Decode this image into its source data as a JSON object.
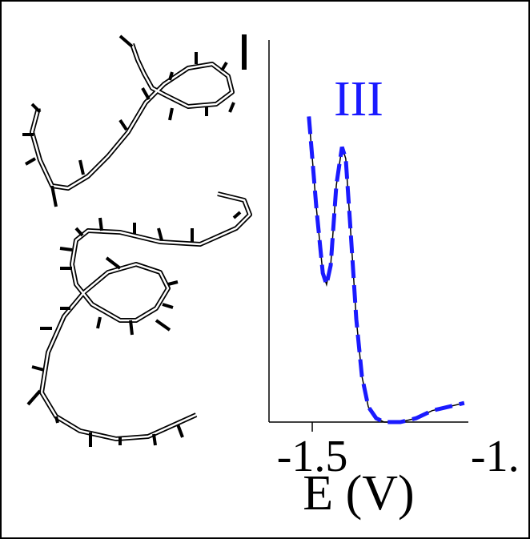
{
  "chart_data": {
    "type": "line",
    "x_label": "E (V)",
    "annotations": [
      "I",
      "III"
    ],
    "x": [
      -1.509,
      -1.489,
      -1.472,
      -1.462,
      -1.451,
      -1.436,
      -1.421,
      -1.411,
      -1.398,
      -1.383,
      -1.368,
      -1.351,
      -1.33,
      -1.309,
      -1.266,
      -1.224,
      -1.181,
      -1.138,
      -1.096
    ],
    "series": [
      {
        "color": "#000000",
        "dash": false,
        "values": [
          0.8,
          0.56,
          0.39,
          0.36,
          0.41,
          0.62,
          0.72,
          0.69,
          0.5,
          0.27,
          0.12,
          0.04,
          0.01,
          0,
          0,
          0.01,
          0.03,
          0.04,
          0.05
        ]
      },
      {
        "color": "#1a1aff",
        "dash": true,
        "values": [
          0.8,
          0.56,
          0.39,
          0.36,
          0.41,
          0.62,
          0.72,
          0.69,
          0.5,
          0.27,
          0.12,
          0.04,
          0.01,
          0,
          0,
          0.01,
          0.03,
          0.04,
          0.05
        ]
      }
    ],
    "xlim": [
      -1.615,
      -1.085
    ],
    "ylim": [
      0,
      1
    ],
    "xticks": [
      -1.5,
      {
        "value": -1.0,
        "label": "-1."
      }
    ]
  }
}
